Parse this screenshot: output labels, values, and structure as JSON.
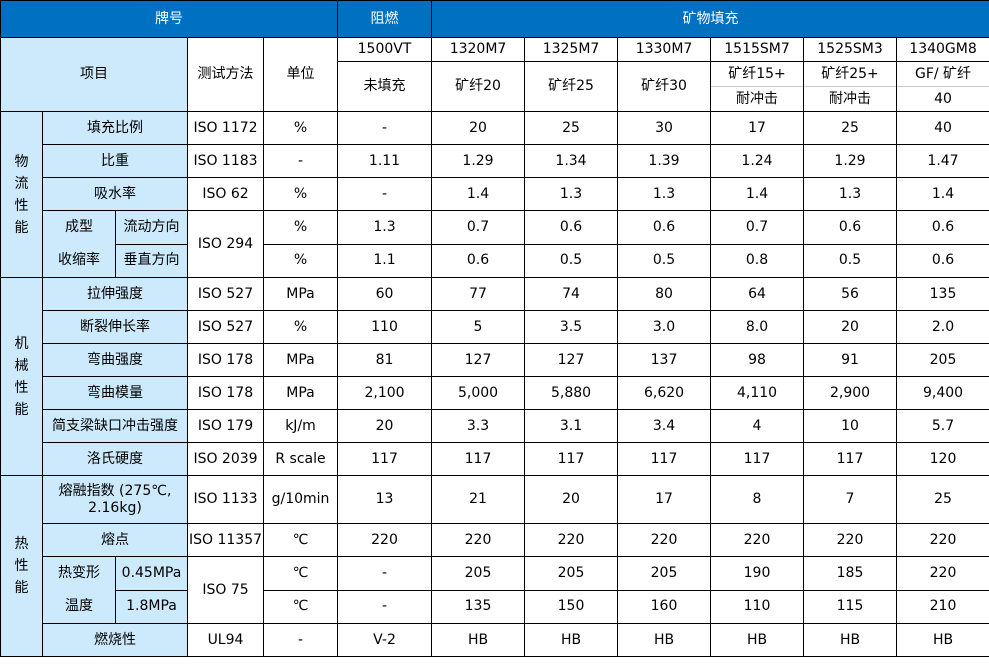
{
  "header": {
    "brand": "牌号",
    "flame_retardant": "阻燃",
    "mineral_filled": "矿物填充",
    "item": "项目",
    "test_method": "测试方法",
    "unit": "单位"
  },
  "colors": {
    "header_bg": "#0070c0",
    "label_bg": "#cdeafc"
  },
  "grades": [
    {
      "code": "1500VT",
      "desc": [
        "未填充"
      ]
    },
    {
      "code": "1320M7",
      "desc": [
        "矿纤20"
      ]
    },
    {
      "code": "1325M7",
      "desc": [
        "矿纤25"
      ]
    },
    {
      "code": "1330M7",
      "desc": [
        "矿纤30"
      ]
    },
    {
      "code": "1515SM7",
      "desc": [
        "矿纤15+",
        "耐冲击"
      ]
    },
    {
      "code": "1525SM3",
      "desc": [
        "矿纤25+",
        "耐冲击"
      ]
    },
    {
      "code": "1340GM8",
      "desc": [
        "GF/ 矿纤",
        "40"
      ]
    }
  ],
  "groups": [
    {
      "name": "物流性能",
      "rows": [
        {
          "label": "填充比例",
          "method": "ISO 1172",
          "unit": "%",
          "values": [
            "-",
            "20",
            "25",
            "30",
            "17",
            "25",
            "40"
          ]
        },
        {
          "label": "比重",
          "method": "ISO 1183",
          "unit": "-",
          "values": [
            "1.11",
            "1.29",
            "1.34",
            "1.39",
            "1.24",
            "1.29",
            "1.47"
          ]
        },
        {
          "label": "吸水率",
          "method": "ISO 62",
          "unit": "%",
          "values": [
            "-",
            "1.4",
            "1.3",
            "1.3",
            "1.4",
            "1.3",
            "1.4"
          ]
        },
        {
          "pair": {
            "labels": [
              "成型",
              "收缩率"
            ],
            "subs": [
              "流动方向",
              "垂直方向"
            ],
            "method": "ISO 294",
            "rows": [
              {
                "unit": "%",
                "values": [
                  "1.3",
                  "0.7",
                  "0.6",
                  "0.6",
                  "0.7",
                  "0.6",
                  "0.6"
                ]
              },
              {
                "unit": "%",
                "values": [
                  "1.1",
                  "0.6",
                  "0.5",
                  "0.5",
                  "0.8",
                  "0.5",
                  "0.6"
                ]
              }
            ]
          }
        }
      ]
    },
    {
      "name": "机械性能",
      "rows": [
        {
          "label": "拉伸强度",
          "method": "ISO 527",
          "unit": "MPa",
          "values": [
            "60",
            "77",
            "74",
            "80",
            "64",
            "56",
            "135"
          ]
        },
        {
          "label": "断裂伸长率",
          "method": "ISO 527",
          "unit": "%",
          "values": [
            "110",
            "5",
            "3.5",
            "3.0",
            "8.0",
            "20",
            "2.0"
          ]
        },
        {
          "label": "弯曲强度",
          "method": "ISO 178",
          "unit": "MPa",
          "values": [
            "81",
            "127",
            "127",
            "137",
            "98",
            "91",
            "205"
          ]
        },
        {
          "label": "弯曲模量",
          "method": "ISO 178",
          "unit": "MPa",
          "values": [
            "2,100",
            "5,000",
            "5,880",
            "6,620",
            "4,110",
            "2,900",
            "9,400"
          ]
        },
        {
          "label": "简支梁缺口冲击强度",
          "method": "ISO 179",
          "unit": "kJ/m",
          "values": [
            "20",
            "3.3",
            "3.1",
            "3.4",
            "4",
            "10",
            "5.7"
          ]
        },
        {
          "label": "洛氏硬度",
          "method": "ISO 2039",
          "unit": "R scale",
          "values": [
            "117",
            "117",
            "117",
            "117",
            "117",
            "117",
            "120"
          ]
        }
      ]
    },
    {
      "name": "热性能",
      "rows": [
        {
          "label": "熔融指数 (275℃, 2.16kg)",
          "tall": true,
          "method": "ISO 1133",
          "unit": "g/10min",
          "values": [
            "13",
            "21",
            "20",
            "17",
            "8",
            "7",
            "25"
          ]
        },
        {
          "label": "熔点",
          "method": "ISO 11357",
          "unit": "℃",
          "values": [
            "220",
            "220",
            "220",
            "220",
            "220",
            "220",
            "220"
          ]
        },
        {
          "pair": {
            "labels": [
              "热变形",
              "温度"
            ],
            "subs": [
              "0.45MPa",
              "1.8MPa"
            ],
            "method": "ISO 75",
            "rows": [
              {
                "unit": "℃",
                "values": [
                  "-",
                  "205",
                  "205",
                  "205",
                  "190",
                  "185",
                  "220"
                ]
              },
              {
                "unit": "℃",
                "values": [
                  "-",
                  "135",
                  "150",
                  "160",
                  "110",
                  "115",
                  "210"
                ]
              }
            ]
          }
        },
        {
          "label": "燃烧性",
          "method": "UL94",
          "unit": "-",
          "values": [
            "V-2",
            "HB",
            "HB",
            "HB",
            "HB",
            "HB",
            "HB"
          ]
        }
      ]
    }
  ]
}
